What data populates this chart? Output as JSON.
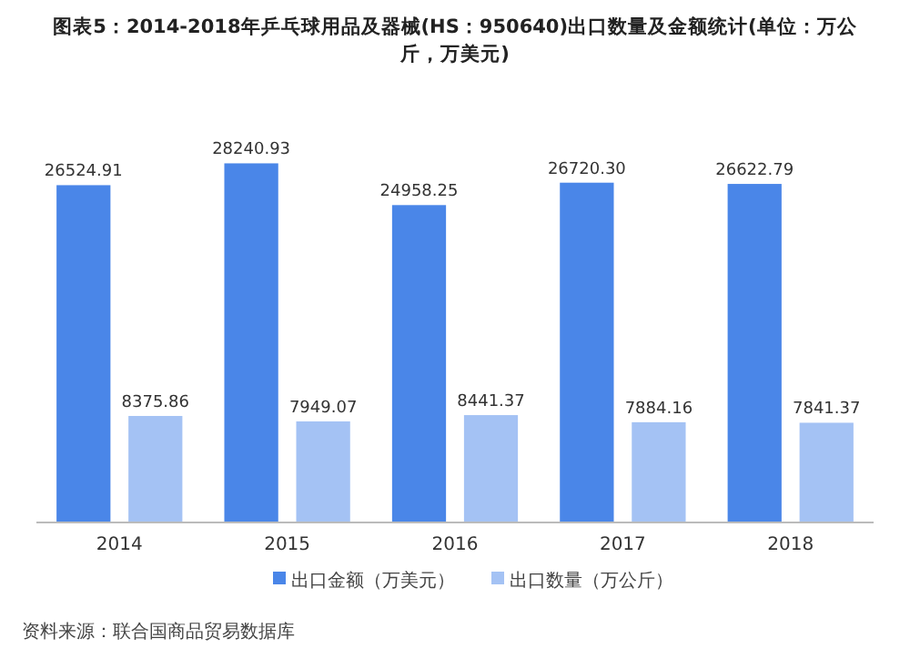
{
  "chart_data": {
    "type": "bar",
    "title": "图表5：2014-2018年乒乓球用品及器械(HS：950640)出口数量及金额统计(单位：万公斤，万美元)",
    "categories": [
      "2014",
      "2015",
      "2016",
      "2017",
      "2018"
    ],
    "series": [
      {
        "name": "出口金额（万美元）",
        "color": "#4a86e8",
        "values": [
          26524.91,
          28240.93,
          24958.25,
          26720.3,
          26622.79
        ],
        "value_labels": [
          "26524.91",
          "28240.93",
          "24958.25",
          "26720.30",
          "26622.79"
        ]
      },
      {
        "name": "出口数量（万公斤）",
        "color": "#a4c2f4",
        "values": [
          8375.86,
          7949.07,
          8441.37,
          7884.16,
          7841.37
        ]
      }
    ],
    "data_labels": true,
    "legend": "bottom",
    "annotations": [
      "资料来源：联合国商品贸易数据库"
    ]
  }
}
